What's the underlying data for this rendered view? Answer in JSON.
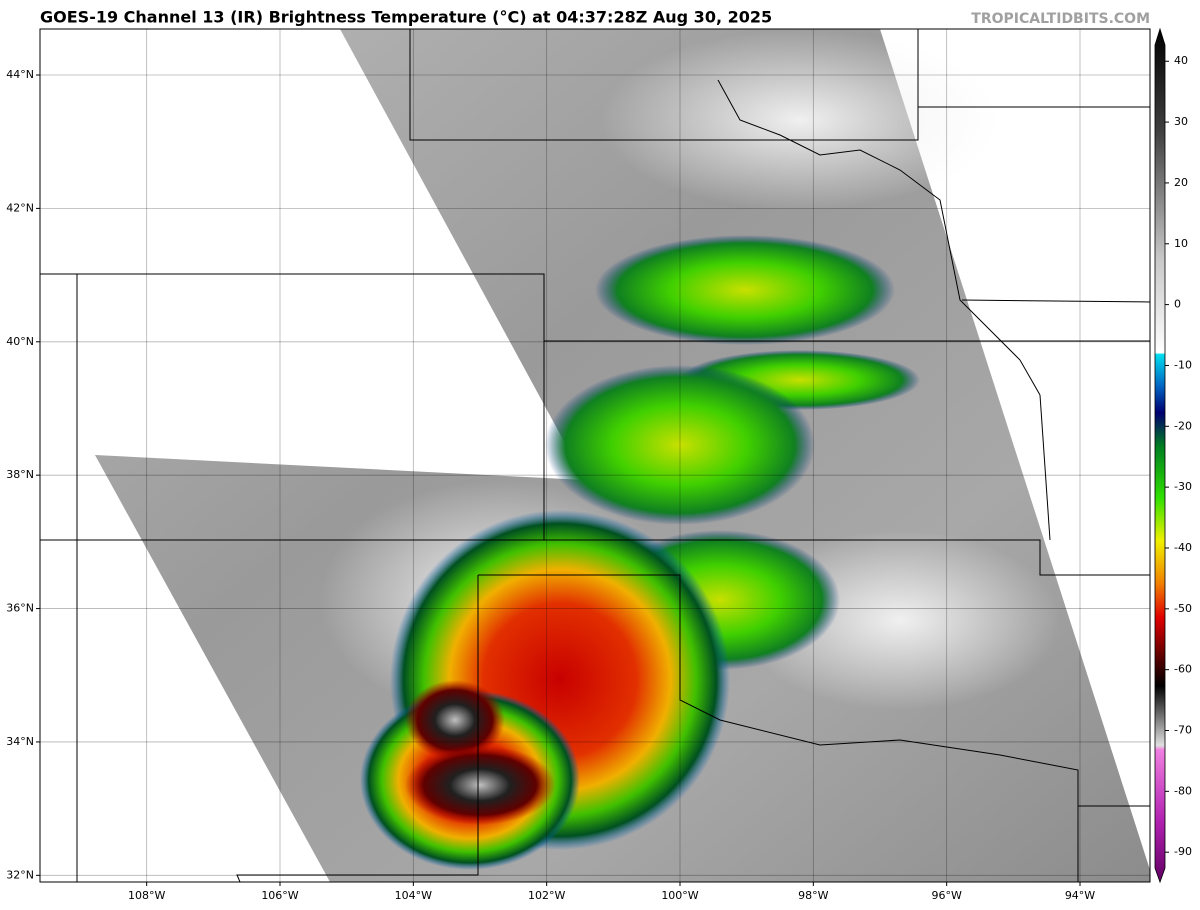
{
  "map": {
    "title": "GOES-19 Channel 13 (IR) Brightness Temperature (°C) at 04:37:28Z Aug 30, 2025",
    "credit": "TROPICALTIDBITS.COM",
    "xlim": [
      -109.6,
      -92.95
    ],
    "ylim": [
      31.9,
      44.69
    ],
    "lon_ticks": [
      {
        "value": -108,
        "label": "108°W"
      },
      {
        "value": -106,
        "label": "106°W"
      },
      {
        "value": -104,
        "label": "104°W"
      },
      {
        "value": -102,
        "label": "102°W"
      },
      {
        "value": -100,
        "label": "100°W"
      },
      {
        "value": -98,
        "label": "98°W"
      },
      {
        "value": -96,
        "label": "96°W"
      },
      {
        "value": -94,
        "label": "94°W"
      }
    ],
    "lat_ticks": [
      {
        "value": 44,
        "label": "44°N"
      },
      {
        "value": 42,
        "label": "42°N"
      },
      {
        "value": 40,
        "label": "40°N"
      },
      {
        "value": 38,
        "label": "38°N"
      },
      {
        "value": 36,
        "label": "36°N"
      },
      {
        "value": 34,
        "label": "34°N"
      },
      {
        "value": 32,
        "label": "32°N"
      }
    ],
    "colorbar": {
      "lim": [
        -94.9,
        45.3
      ],
      "ticks": [
        40,
        30,
        20,
        10,
        0,
        -10,
        -20,
        -30,
        -40,
        -50,
        -60,
        -70,
        -80,
        -90
      ]
    }
  }
}
